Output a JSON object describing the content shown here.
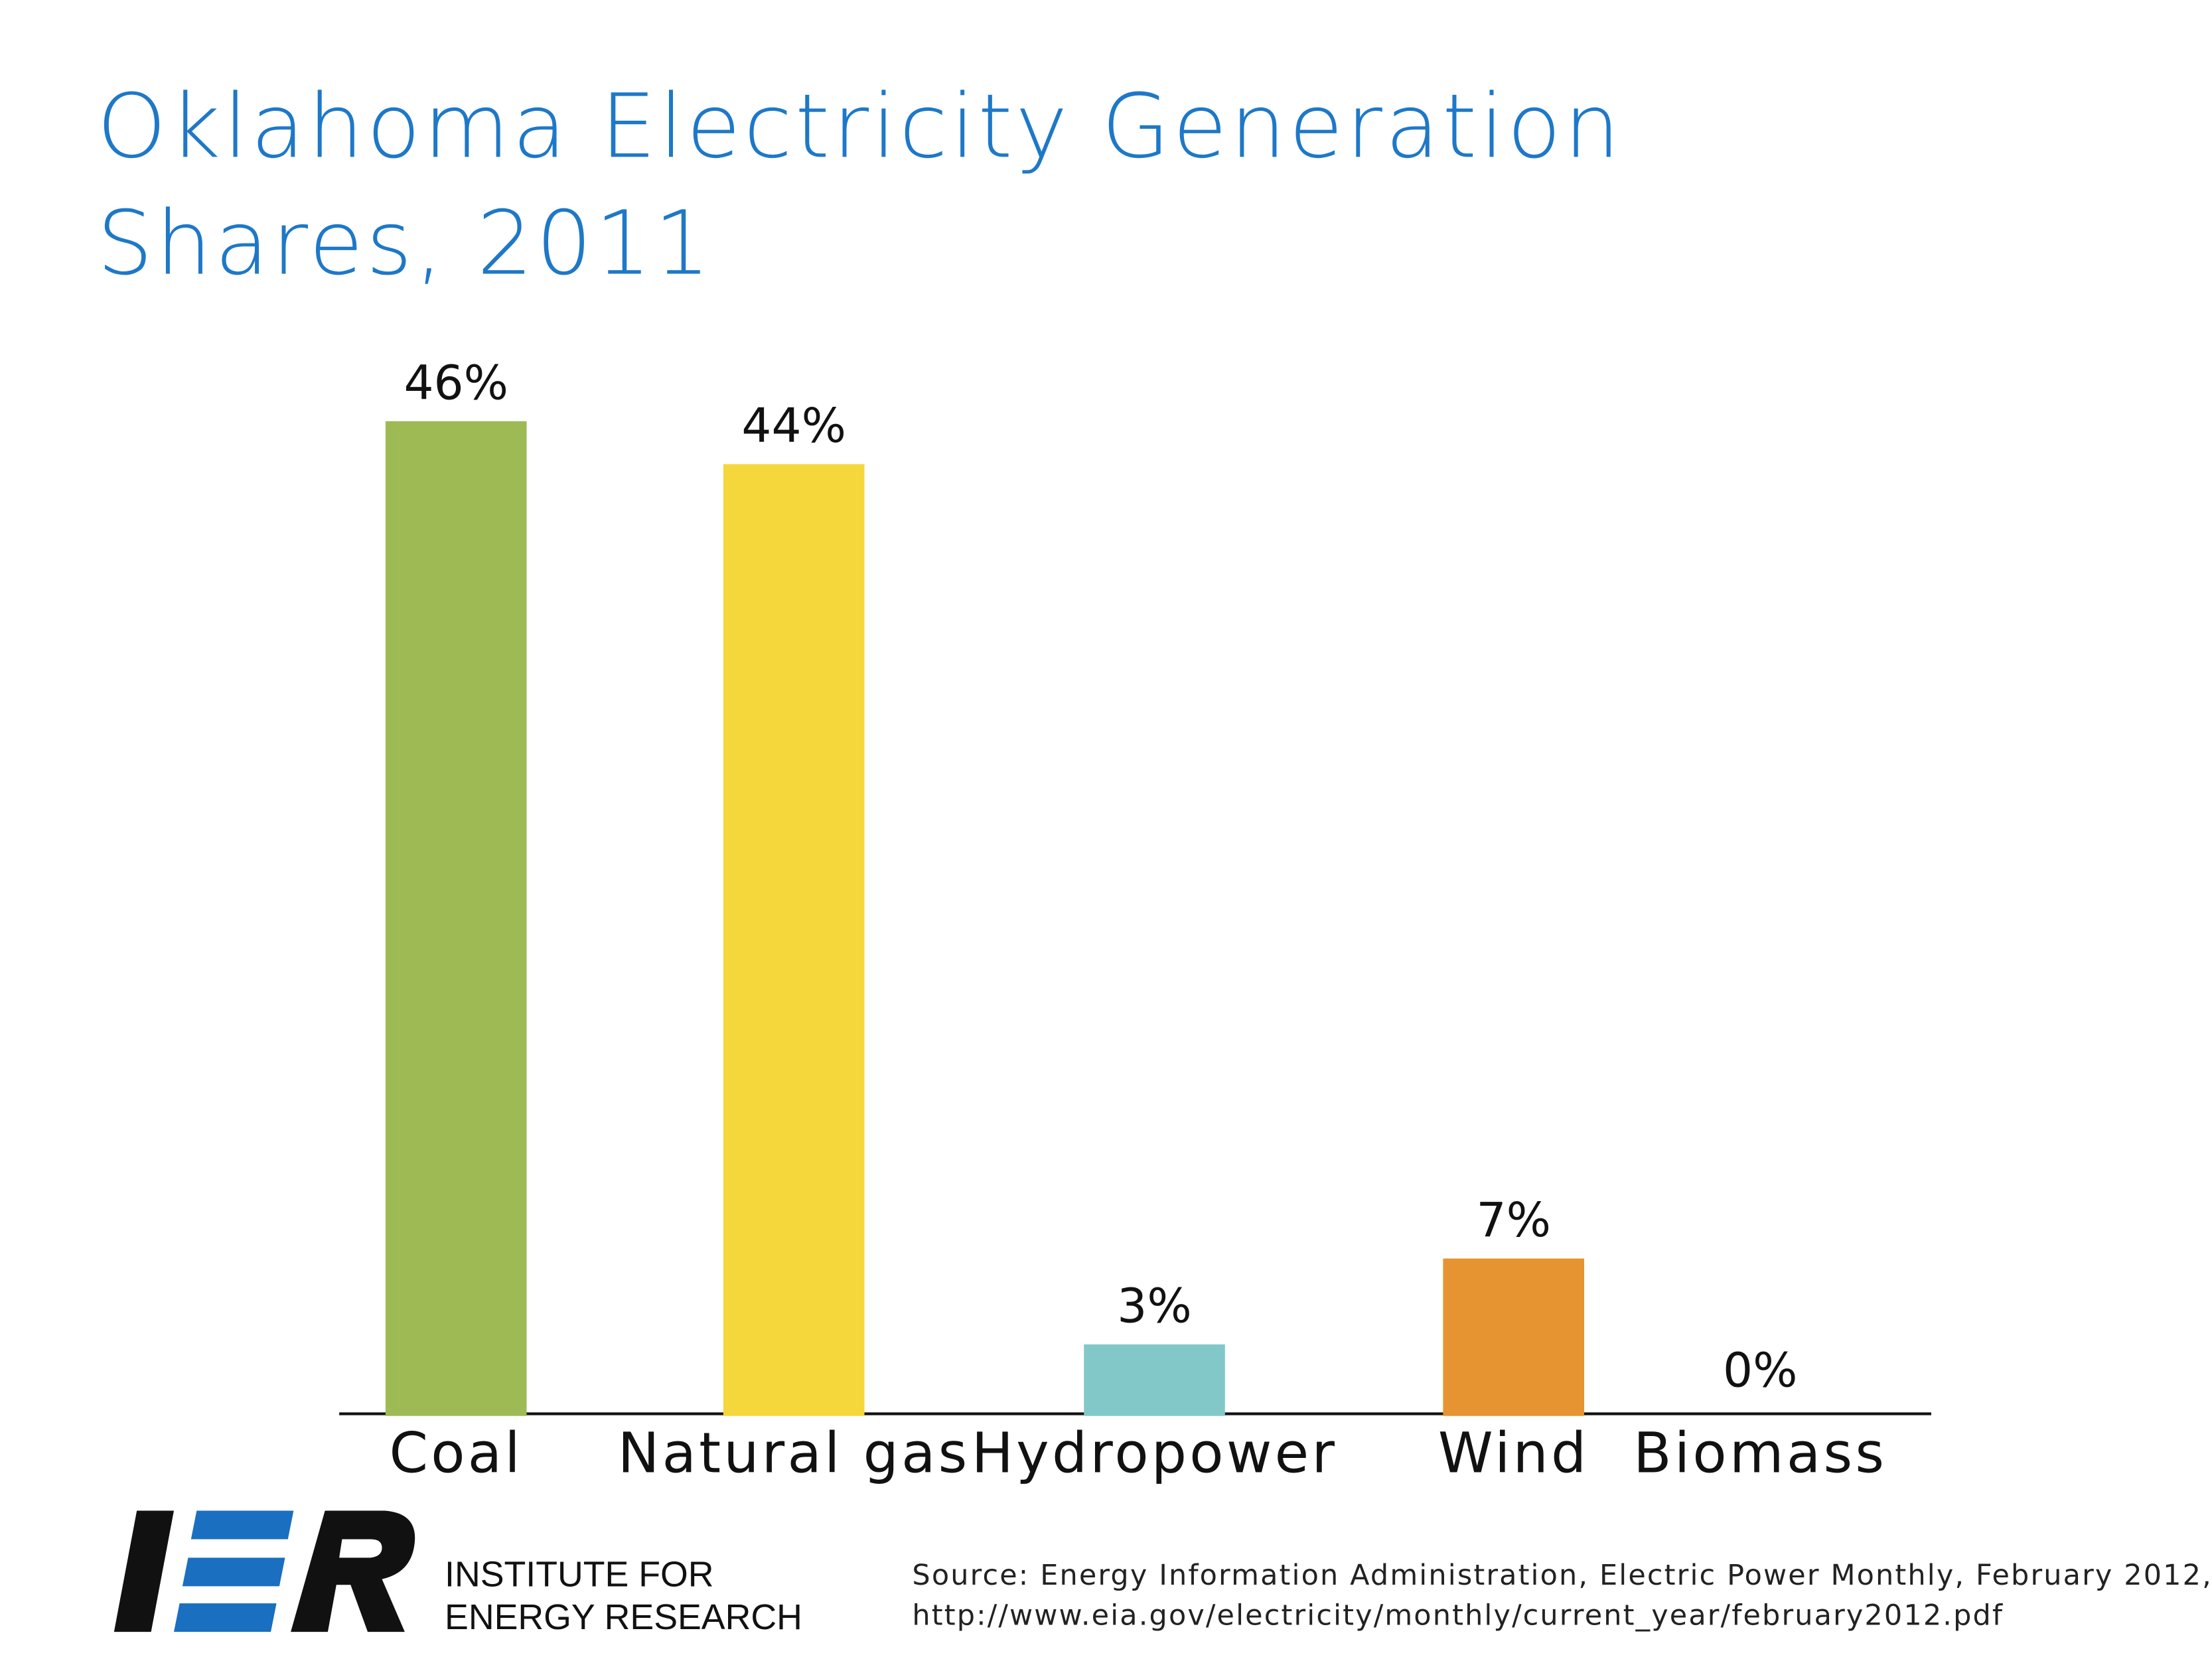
{
  "chart_data": {
    "type": "bar",
    "title": [
      "Oklahoma Electricity Generation",
      "Shares, 2011"
    ],
    "categories": [
      "Coal",
      "Natural gas",
      "Hydropower",
      "Wind",
      "Biomass"
    ],
    "values": [
      46,
      44,
      3,
      7,
      0
    ],
    "value_labels": [
      "46%",
      "44%",
      "3%",
      "7%",
      "0%"
    ],
    "colors": [
      "#9dba55",
      "#f5d73c",
      "#82c8c8",
      "#e69332",
      "#c8283c"
    ],
    "source": [
      "Source: Energy Information Administration, Electric Power Monthly, February 2012,",
      "http://www.eia.gov/electricity/monthly/current_year/february2012.pdf"
    ],
    "logo": [
      "INSTITUTE FOR",
      "ENERGY RESEARCH"
    ]
  }
}
